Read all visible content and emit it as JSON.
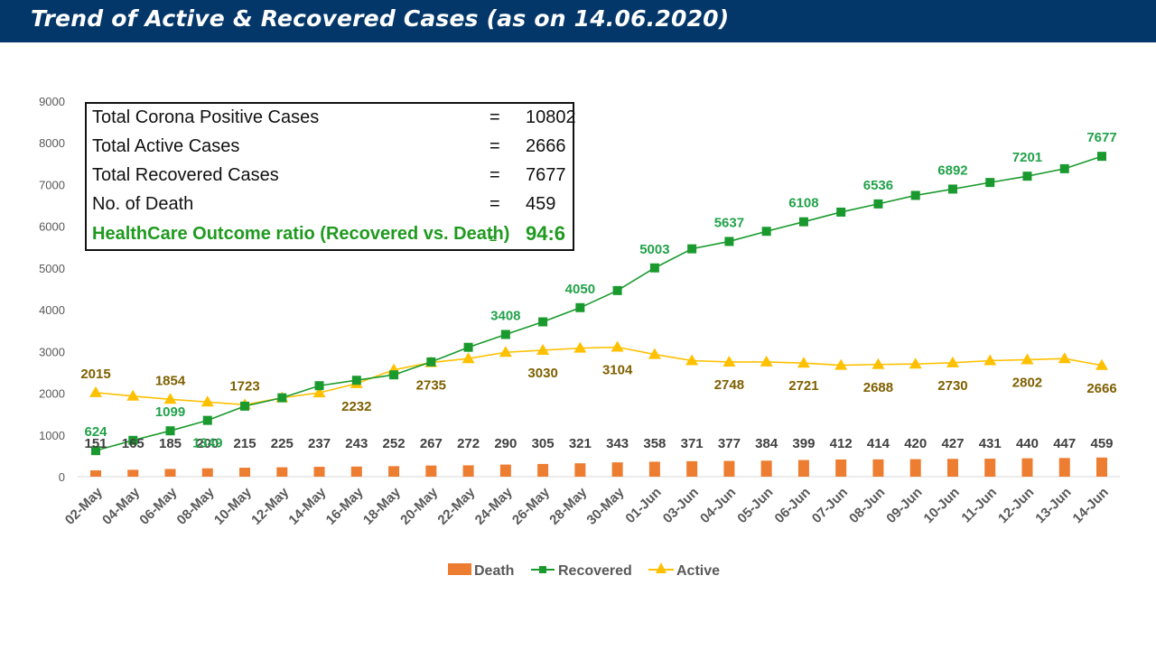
{
  "header": {
    "title": "Trend of Active & Recovered Cases (as on 14.06.2020)"
  },
  "summary": {
    "rows": [
      {
        "label": "Total Corona Positive Cases",
        "eq": "=",
        "value": "10802"
      },
      {
        "label": "Total Active Cases",
        "eq": "=",
        "value": "2666"
      },
      {
        "label": "Total Recovered Cases",
        "eq": "=",
        "value": "7677"
      },
      {
        "label": "No. of Death",
        "eq": "=",
        "value": "459"
      },
      {
        "label": "HealthCare Outcome ratio (Recovered vs. Death)",
        "eq": "=",
        "value": "94:6"
      }
    ]
  },
  "colors": {
    "banner": "#043769",
    "death": "#ED7D31",
    "recovered": "#1A9A2E",
    "recovered_label": "#22A24A",
    "active": "#FFC000",
    "active_label": "#7F6000",
    "death_label": "#404040"
  },
  "chart_data": {
    "type": "line",
    "title": "Trend of Active & Recovered Cases (as on 14.06.2020)",
    "xlabel": "",
    "ylabel": "",
    "ylim": [
      0,
      9000
    ],
    "yticks": [
      0,
      1000,
      2000,
      3000,
      4000,
      5000,
      6000,
      7000,
      8000,
      9000
    ],
    "grid": false,
    "legend_position": "bottom",
    "categories": [
      "02-May",
      "04-May",
      "06-May",
      "08-May",
      "10-May",
      "12-May",
      "14-May",
      "16-May",
      "18-May",
      "20-May",
      "22-May",
      "24-May",
      "26-May",
      "28-May",
      "30-May",
      "01-Jun",
      "03-Jun",
      "04-Jun",
      "05-Jun",
      "06-Jun",
      "07-Jun",
      "08-Jun",
      "09-Jun",
      "10-Jun",
      "11-Jun",
      "12-Jun",
      "13-Jun",
      "14-Jun"
    ],
    "series": [
      {
        "name": "Death",
        "kind": "bar",
        "values": [
          151,
          165,
          185,
          200,
          215,
          225,
          237,
          243,
          252,
          267,
          272,
          290,
          305,
          321,
          343,
          358,
          371,
          377,
          384,
          399,
          412,
          414,
          420,
          427,
          431,
          440,
          447,
          459
        ],
        "labels_shown": [
          true,
          true,
          true,
          true,
          true,
          true,
          true,
          true,
          true,
          true,
          true,
          true,
          true,
          true,
          true,
          true,
          true,
          true,
          true,
          true,
          true,
          true,
          true,
          true,
          true,
          true,
          true,
          true
        ]
      },
      {
        "name": "Recovered",
        "kind": "line",
        "marker": "square",
        "values": [
          624,
          870,
          1099,
          1349,
          1690,
          1890,
          2180,
          2310,
          2440,
          2750,
          3100,
          3408,
          3710,
          4050,
          4460,
          5003,
          5460,
          5637,
          5880,
          6108,
          6340,
          6536,
          6740,
          6892,
          7050,
          7201,
          7380,
          7677
        ],
        "labels_shown": [
          true,
          false,
          true,
          true,
          false,
          false,
          false,
          false,
          false,
          false,
          false,
          true,
          false,
          true,
          false,
          true,
          false,
          true,
          false,
          true,
          false,
          true,
          false,
          true,
          false,
          true,
          false,
          true
        ],
        "label_below": [
          false,
          false,
          false,
          true,
          false,
          false,
          false,
          false,
          false,
          false,
          false,
          false,
          false,
          false,
          false,
          false,
          false,
          false,
          false,
          false,
          false,
          false,
          false,
          false,
          false,
          false,
          false,
          false
        ]
      },
      {
        "name": "Active",
        "kind": "line",
        "marker": "triangle",
        "values": [
          2015,
          1930,
          1854,
          1790,
          1723,
          1890,
          2010,
          2232,
          2560,
          2735,
          2830,
          2980,
          3030,
          3080,
          3104,
          2930,
          2780,
          2748,
          2750,
          2721,
          2670,
          2688,
          2700,
          2730,
          2780,
          2802,
          2830,
          2666
        ],
        "labels_shown": [
          true,
          false,
          true,
          false,
          true,
          false,
          false,
          true,
          false,
          true,
          false,
          false,
          true,
          false,
          true,
          false,
          false,
          true,
          false,
          true,
          false,
          true,
          false,
          true,
          false,
          true,
          false,
          true
        ],
        "label_below": [
          false,
          false,
          false,
          false,
          false,
          false,
          false,
          true,
          false,
          true,
          false,
          false,
          true,
          false,
          true,
          false,
          false,
          true,
          false,
          true,
          false,
          true,
          false,
          true,
          false,
          true,
          false,
          true
        ]
      }
    ]
  }
}
